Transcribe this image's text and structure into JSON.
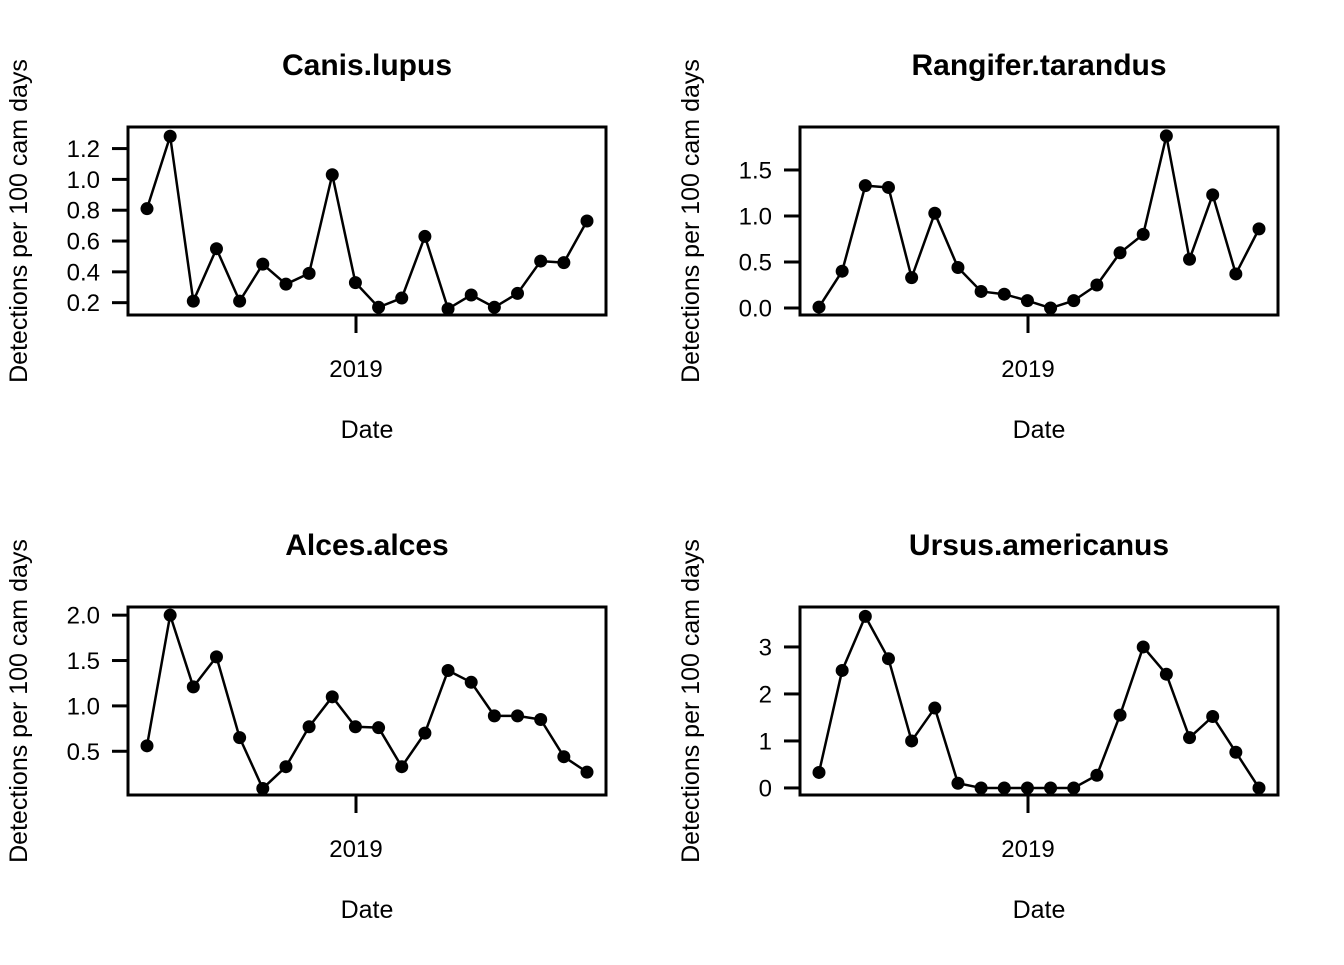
{
  "figure": {
    "background_color": "#ffffff",
    "foreground_color": "#000000",
    "grid_layout": "2x2",
    "shared_xlabel": "Date",
    "shared_ylabel": "Detections per 100 cam days",
    "shared_x_tick_label": "2019"
  },
  "chart_data": [
    {
      "type": "line",
      "title": "Canis.lupus",
      "xlabel": "Date",
      "ylabel": "Detections per 100 cam days",
      "marker": "filled-circle",
      "line_color": "#000000",
      "grid": false,
      "x_axis": {
        "tick_label": "2019",
        "tick_fraction": 0.475
      },
      "y_axis": {
        "ticks": [
          0.2,
          0.4,
          0.6,
          0.8,
          1.0,
          1.2
        ],
        "tick_labels": [
          "0.2",
          "0.4",
          "0.6",
          "0.8",
          "1.0",
          "1.2"
        ],
        "ylim": [
          0.12,
          1.34
        ]
      },
      "values": [
        0.81,
        1.28,
        0.21,
        0.55,
        0.21,
        0.45,
        0.32,
        0.39,
        1.03,
        0.33,
        0.17,
        0.23,
        0.63,
        0.16,
        0.25,
        0.17,
        0.26,
        0.47,
        0.46,
        0.73
      ]
    },
    {
      "type": "line",
      "title": "Rangifer.tarandus",
      "xlabel": "Date",
      "ylabel": "Detections per 100 cam days",
      "marker": "filled-circle",
      "line_color": "#000000",
      "grid": false,
      "x_axis": {
        "tick_label": "2019",
        "tick_fraction": 0.475
      },
      "y_axis": {
        "ticks": [
          0.0,
          0.5,
          1.0,
          1.5
        ],
        "tick_labels": [
          "0.0",
          "0.5",
          "1.0",
          "1.5"
        ],
        "ylim": [
          -0.076,
          1.967
        ]
      },
      "values": [
        0.01,
        0.4,
        1.33,
        1.31,
        0.33,
        1.03,
        0.44,
        0.18,
        0.15,
        0.08,
        0.0,
        0.08,
        0.25,
        0.6,
        0.8,
        1.87,
        0.53,
        1.23,
        0.37,
        0.86
      ]
    },
    {
      "type": "line",
      "title": "Alces.alces",
      "xlabel": "Date",
      "ylabel": "Detections per 100 cam days",
      "marker": "filled-circle",
      "line_color": "#000000",
      "grid": false,
      "x_axis": {
        "tick_label": "2019",
        "tick_fraction": 0.475
      },
      "y_axis": {
        "ticks": [
          0.5,
          1.0,
          1.5,
          2.0
        ],
        "tick_labels": [
          "0.5",
          "1.0",
          "1.5",
          "2.0"
        ],
        "ylim": [
          0.018,
          2.09
        ]
      },
      "values": [
        0.56,
        2.0,
        1.21,
        1.54,
        0.65,
        0.09,
        0.33,
        0.77,
        1.1,
        0.77,
        0.76,
        0.33,
        0.7,
        1.39,
        1.26,
        0.89,
        0.89,
        0.85,
        0.44,
        0.27
      ]
    },
    {
      "type": "line",
      "title": "Ursus.americanus",
      "xlabel": "Date",
      "ylabel": "Detections per 100 cam days",
      "marker": "filled-circle",
      "line_color": "#000000",
      "grid": false,
      "x_axis": {
        "tick_label": "2019",
        "tick_fraction": 0.475
      },
      "y_axis": {
        "ticks": [
          0,
          1,
          2,
          3
        ],
        "tick_labels": [
          "0",
          "1",
          "2",
          "3"
        ],
        "ylim": [
          -0.15,
          3.85
        ]
      },
      "values": [
        0.33,
        2.5,
        3.65,
        2.75,
        1.0,
        1.7,
        0.1,
        0.0,
        0.0,
        0.0,
        0.0,
        0.0,
        0.27,
        1.55,
        3.0,
        2.42,
        1.07,
        1.52,
        0.76,
        0.0
      ]
    }
  ]
}
